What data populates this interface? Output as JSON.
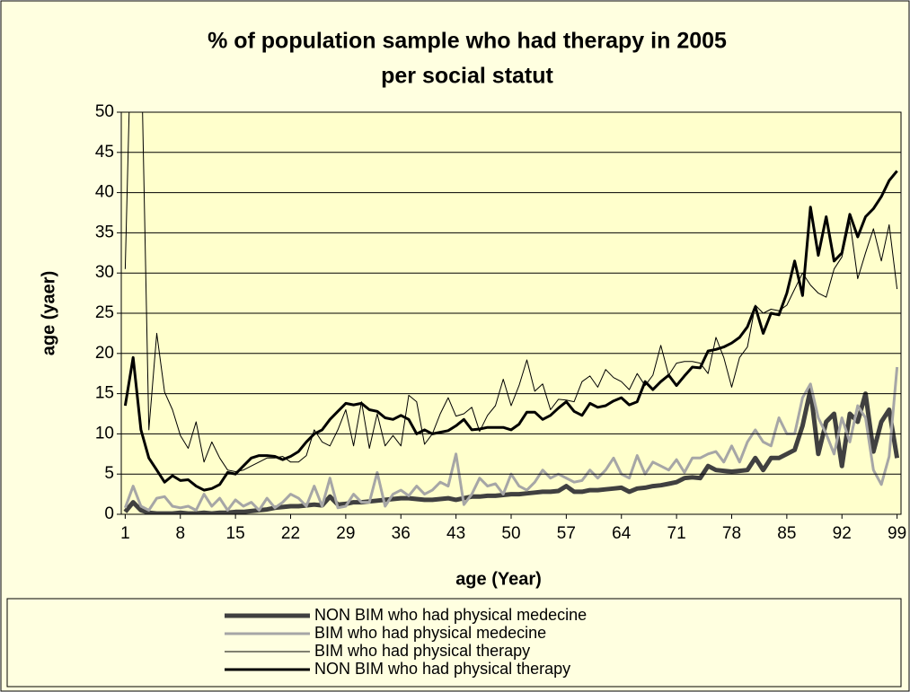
{
  "chart_data": {
    "type": "line",
    "title": [
      "% of population sample who had therapy in 2005",
      "per social statut"
    ],
    "x_label": "age (Year)",
    "y_label": "age (yaer)",
    "categories": [
      "1",
      null,
      null,
      null,
      null,
      null,
      null,
      "8",
      null,
      null,
      null,
      null,
      null,
      null,
      "15",
      null,
      null,
      null,
      null,
      null,
      null,
      "22",
      null,
      null,
      null,
      null,
      null,
      null,
      "29",
      null,
      null,
      null,
      null,
      null,
      null,
      "36",
      null,
      null,
      null,
      null,
      null,
      null,
      "43",
      null,
      null,
      null,
      null,
      null,
      null,
      "50",
      null,
      null,
      null,
      null,
      null,
      null,
      "57",
      null,
      null,
      null,
      null,
      null,
      null,
      "64",
      null,
      null,
      null,
      null,
      null,
      null,
      "71",
      null,
      null,
      null,
      null,
      null,
      null,
      "78",
      null,
      null,
      null,
      null,
      null,
      null,
      "85",
      null,
      null,
      null,
      null,
      null,
      null,
      "92",
      null,
      null,
      null,
      null,
      null,
      null,
      "99"
    ],
    "ylim": [
      0,
      50
    ],
    "yticks": [
      0,
      5,
      10,
      15,
      20,
      25,
      30,
      35,
      40,
      45,
      50
    ],
    "grid": true,
    "series": [
      {
        "name": "NON BIM who had physical medecine",
        "color": "#404040",
        "width": 5,
        "values": [
          0.3,
          1.5,
          0.5,
          0.2,
          0.1,
          0.1,
          0.1,
          0.2,
          0.1,
          0.1,
          0.2,
          0.1,
          0.2,
          0.2,
          0.3,
          0.3,
          0.4,
          0.5,
          0.6,
          0.8,
          0.9,
          1.0,
          1.0,
          1.1,
          1.2,
          1.1,
          2.2,
          1.2,
          1.3,
          1.5,
          1.5,
          1.6,
          1.7,
          1.8,
          1.9,
          2.0,
          2.0,
          1.9,
          1.8,
          1.8,
          1.9,
          2.0,
          1.8,
          2.0,
          2.2,
          2.2,
          2.3,
          2.3,
          2.4,
          2.5,
          2.5,
          2.6,
          2.7,
          2.8,
          2.8,
          2.9,
          3.5,
          2.8,
          2.8,
          3.0,
          3.0,
          3.1,
          3.2,
          3.3,
          2.8,
          3.2,
          3.3,
          3.5,
          3.6,
          3.8,
          4.0,
          4.5,
          4.6,
          4.5,
          6.0,
          5.5,
          5.4,
          5.3,
          5.4,
          5.5,
          7.0,
          5.5,
          7.0,
          7.0,
          7.5,
          8.0,
          11.0,
          15.5,
          7.5,
          11.5,
          12.5,
          6.0,
          12.5,
          11.5,
          15.0,
          7.8,
          11.5,
          13.0,
          7.0
        ]
      },
      {
        "name": " BIM who had physical medecine",
        "color": "#a6a6a6",
        "width": 3,
        "values": [
          0.8,
          3.5,
          1.0,
          0.5,
          2.0,
          2.2,
          1.0,
          0.8,
          1.0,
          0.5,
          2.5,
          1.0,
          2.0,
          0.5,
          1.8,
          1.0,
          1.5,
          0.5,
          2.0,
          0.8,
          1.5,
          2.5,
          2.0,
          1.0,
          3.5,
          1.0,
          4.5,
          0.8,
          1.0,
          2.5,
          1.5,
          1.5,
          5.2,
          1.0,
          2.5,
          3.0,
          2.3,
          3.5,
          2.5,
          3.0,
          4.0,
          3.5,
          7.5,
          1.2,
          2.5,
          4.5,
          3.5,
          3.8,
          2.5,
          5.0,
          3.5,
          3.0,
          4.0,
          5.5,
          4.5,
          5.0,
          4.5,
          4.0,
          4.2,
          5.5,
          4.5,
          5.5,
          7.0,
          5.0,
          4.5,
          7.3,
          5.0,
          6.5,
          6.0,
          5.5,
          6.8,
          5.2,
          7.0,
          7.0,
          7.5,
          7.8,
          6.5,
          8.5,
          6.5,
          9.0,
          10.5,
          9.0,
          8.5,
          12.0,
          10.0,
          10.0,
          14.5,
          16.2,
          12.0,
          10.0,
          7.5,
          12.0,
          9.0,
          13.5,
          12.0,
          5.5,
          3.7,
          7.2,
          18.3
        ]
      },
      {
        "name": "BIM who had physical therapy",
        "color": "#000000",
        "width": 1,
        "values": [
          30.5,
          70,
          60,
          10.5,
          22.5,
          15.2,
          13.0,
          9.8,
          8.2,
          11.5,
          6.5,
          9.0,
          7.0,
          5.5,
          5.3,
          5.5,
          6.0,
          6.5,
          7.0,
          7.0,
          7.2,
          6.5,
          6.5,
          7.3,
          10.5,
          9.0,
          8.5,
          10.5,
          13.0,
          8.5,
          14.0,
          8.2,
          12.5,
          8.5,
          9.8,
          8.5,
          14.8,
          14.0,
          8.7,
          10.0,
          12.5,
          14.5,
          12.2,
          12.5,
          13.3,
          10.3,
          12.3,
          13.5,
          16.8,
          13.5,
          16.0,
          19.2,
          15.3,
          16.2,
          13.0,
          14.3,
          14.2,
          14.0,
          16.5,
          17.2,
          15.8,
          18.0,
          17.0,
          16.5,
          15.5,
          17.5,
          16.0,
          17.3,
          21.0,
          17.3,
          18.8,
          19.0,
          19.0,
          18.8,
          17.5,
          22.0,
          19.5,
          15.8,
          19.5,
          20.8,
          26.0,
          25.0,
          25.5,
          25.3,
          26.0,
          28.0,
          30.0,
          28.5,
          27.5,
          27.0,
          30.5,
          32.0,
          36.5,
          29.3,
          32.5,
          35.5,
          31.5,
          36.0,
          28.0
        ]
      },
      {
        "name": "NON BIM who had physical therapy",
        "color": "#000000",
        "width": 3,
        "values": [
          13.5,
          19.5,
          10.5,
          7.0,
          5.5,
          4.0,
          4.8,
          4.2,
          4.3,
          3.5,
          3.0,
          3.2,
          3.7,
          5.2,
          5.0,
          6.0,
          7.0,
          7.3,
          7.3,
          7.2,
          6.8,
          7.2,
          7.8,
          9.0,
          10.0,
          10.5,
          11.8,
          12.8,
          13.8,
          13.6,
          13.8,
          13.0,
          12.8,
          12.0,
          11.8,
          12.3,
          11.8,
          10.0,
          10.5,
          10.0,
          10.2,
          10.4,
          11.0,
          11.8,
          10.5,
          10.6,
          10.8,
          10.8,
          10.8,
          10.5,
          11.2,
          12.7,
          12.7,
          11.8,
          12.3,
          13.2,
          14.0,
          12.8,
          12.3,
          13.8,
          13.3,
          13.5,
          14.1,
          14.5,
          13.6,
          14.0,
          16.5,
          15.5,
          16.5,
          17.3,
          16.0,
          17.2,
          18.3,
          18.2,
          20.3,
          20.5,
          20.8,
          21.3,
          22.0,
          23.3,
          25.8,
          22.5,
          25.0,
          24.8,
          27.5,
          31.5,
          27.2,
          38.2,
          32.2,
          37.0,
          31.5,
          32.5,
          37.3,
          34.5,
          37.0,
          38.0,
          39.5,
          41.5,
          42.7
        ]
      }
    ]
  }
}
